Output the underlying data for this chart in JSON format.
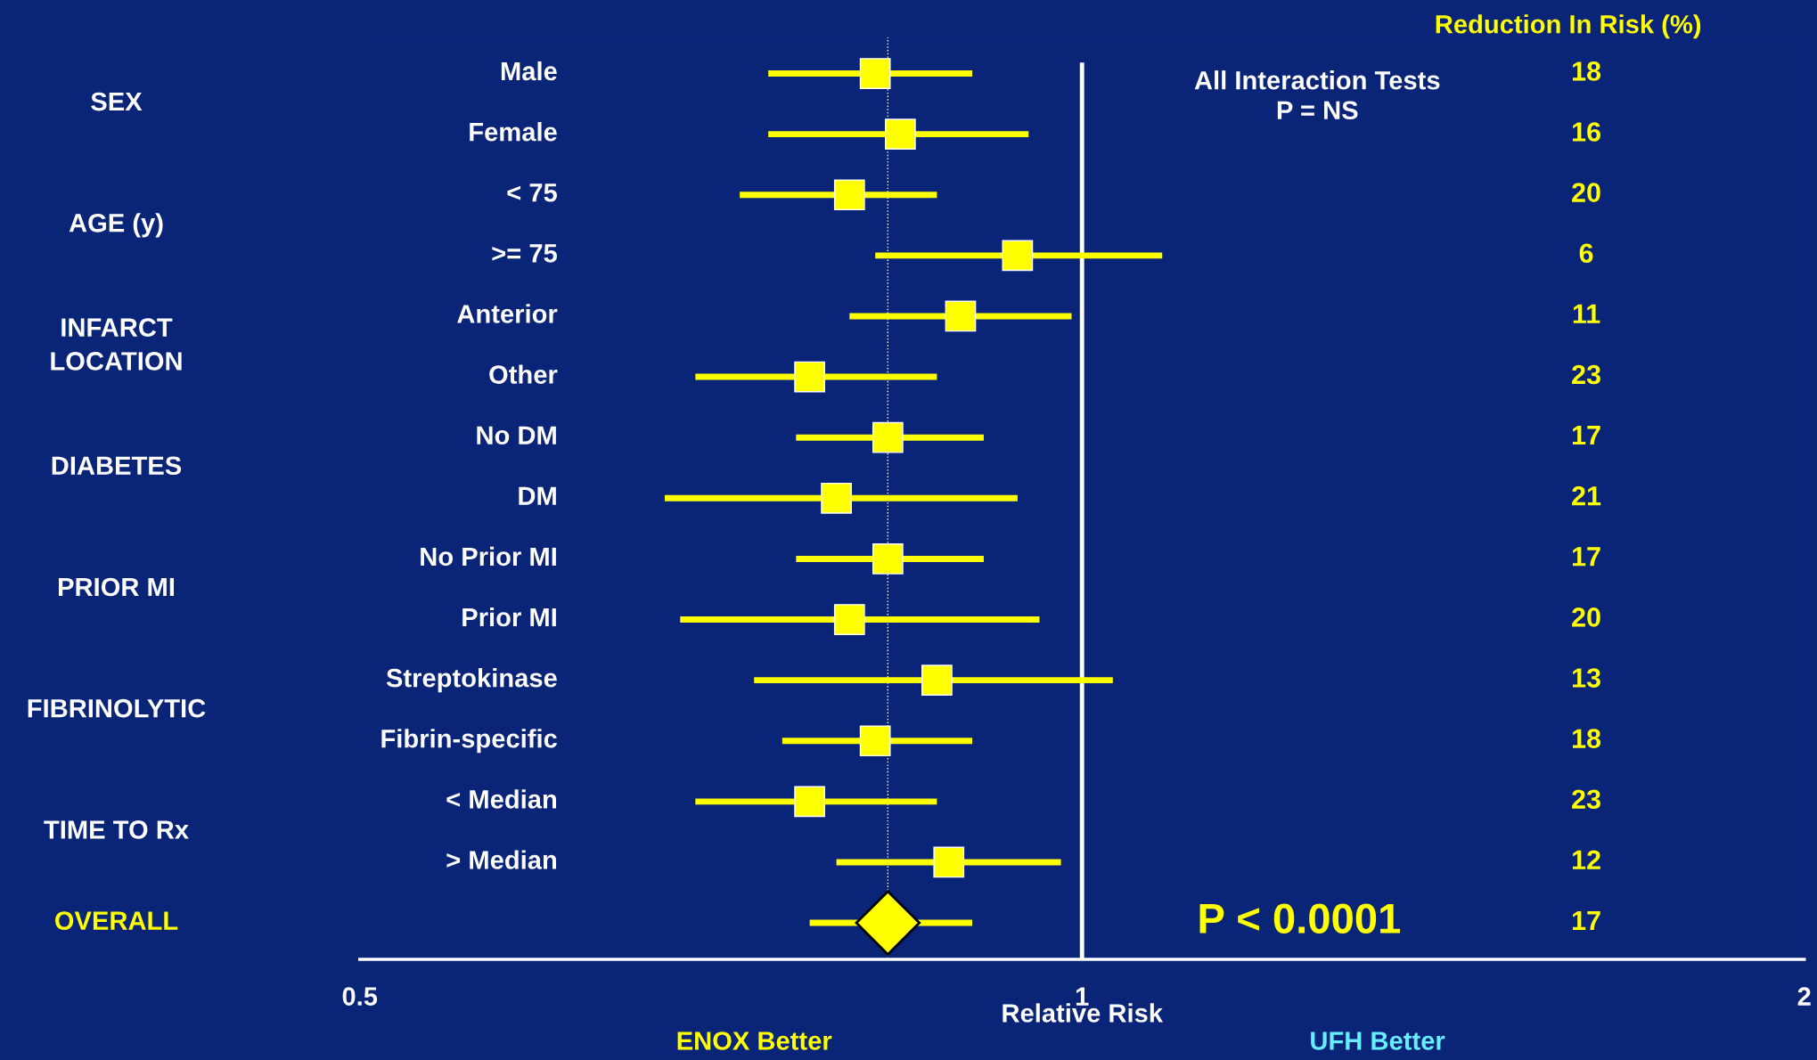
{
  "chart_data": {
    "type": "scatter",
    "orientation": "horizontal",
    "log": "x",
    "xlabel": "Relative Risk",
    "categories": [
      "Male",
      "Female",
      "< 75",
      ">= 75",
      "Anterior",
      "Other",
      "No DM",
      "DM",
      "No Prior MI",
      "Prior MI",
      "Streptokinase",
      "Fibrin-specific",
      "< Median",
      "> Median",
      null
    ],
    "series": [
      {
        "color": "#ffff00",
        "marker": "square",
        "values": [
          0.82,
          0.84,
          0.8,
          0.94,
          0.89,
          0.77,
          0.83,
          0.79,
          0.83,
          0.8,
          0.87,
          0.82,
          0.77,
          0.88,
          null
        ],
        "errors": [
          [
            0.74,
            0.9
          ],
          [
            0.74,
            0.95
          ],
          [
            0.72,
            0.87
          ],
          [
            0.82,
            1.08
          ],
          [
            0.8,
            0.99
          ],
          [
            0.69,
            0.87
          ],
          [
            0.76,
            0.91
          ],
          [
            0.67,
            0.94
          ],
          [
            0.76,
            0.91
          ],
          [
            0.68,
            0.96
          ],
          [
            0.73,
            1.03
          ],
          [
            0.75,
            0.9
          ],
          [
            0.69,
            0.87
          ],
          [
            0.79,
            0.98
          ],
          null
        ]
      },
      {
        "color": "#ffff00",
        "marker": "diamond",
        "values": [
          null,
          null,
          null,
          null,
          null,
          null,
          null,
          null,
          null,
          null,
          null,
          null,
          null,
          null,
          0.83
        ],
        "errors": [
          null,
          null,
          null,
          null,
          null,
          null,
          null,
          null,
          null,
          null,
          null,
          null,
          null,
          null,
          [
            0.77,
            0.9
          ]
        ]
      }
    ],
    "xlim": [
      0.5,
      2
    ],
    "xticks": [
      0.5,
      1,
      2
    ],
    "ref_lines": [
      {
        "axis": "x",
        "value": 1,
        "color": "#ffffff",
        "line_style": "solid"
      },
      {
        "axis": "x",
        "value": 0.83,
        "color": "#ffffff",
        "line_style": "dotted"
      }
    ],
    "grid": false,
    "legend": false,
    "annotations": [
      "18",
      "16",
      "20",
      "6",
      "11",
      "23",
      "17",
      "21",
      "17",
      "20",
      "13",
      "18",
      "23",
      "12",
      "17",
      "SEX",
      "AGE (y)",
      "INFARCT\nLOCATION",
      "DIABETES",
      "PRIOR MI",
      "FIBRINOLYTIC",
      "TIME TO Rx",
      "OVERALL",
      "Reduction In Risk (%)",
      "All Interaction Tests\nP = NS",
      "P < 0.0001",
      "ENOX Better",
      "UFH Better"
    ]
  }
}
